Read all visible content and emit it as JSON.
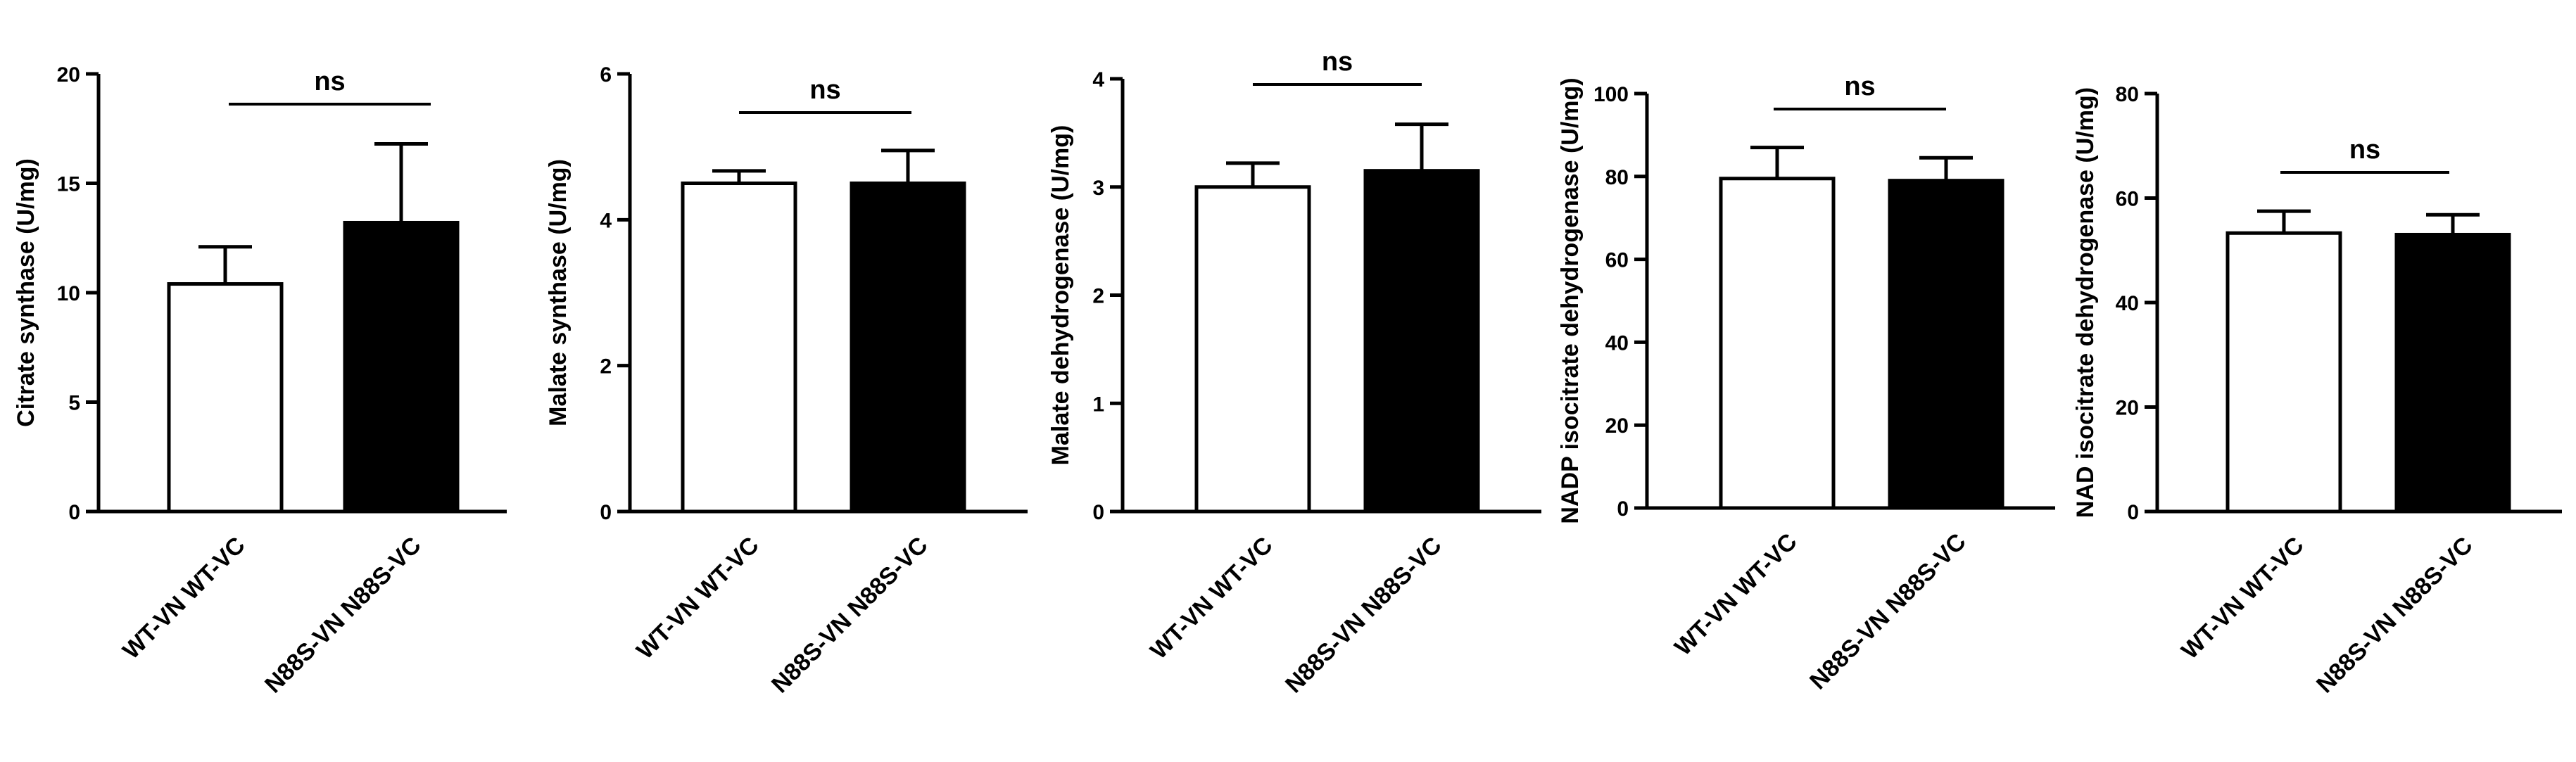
{
  "chart_data": [
    {
      "type": "bar",
      "categories": [
        "WT-VN WT-VC",
        "N88S-VN N88S-VC"
      ],
      "values": [
        10.4,
        13.2
      ],
      "errors": [
        1.7,
        3.6
      ],
      "ylabel": "Citrate synthase (U/mg)",
      "ylim": [
        0,
        20
      ],
      "yticks": [
        0,
        5,
        10,
        15,
        20
      ],
      "significance": "ns",
      "bar_colors": [
        "#ffffff",
        "#000000"
      ],
      "grid": false
    },
    {
      "type": "bar",
      "categories": [
        "WT-VN WT-VC",
        "N88S-VN N88S-VC"
      ],
      "values": [
        4.5,
        4.5
      ],
      "errors": [
        0.17,
        0.45
      ],
      "ylabel": "Malate synthase (U/mg)",
      "ylim": [
        0,
        6
      ],
      "yticks": [
        0,
        2,
        4,
        6
      ],
      "significance": "ns",
      "bar_colors": [
        "#ffffff",
        "#000000"
      ],
      "grid": false
    },
    {
      "type": "bar",
      "categories": [
        "WT-VN WT-VC",
        "N88S-VN N88S-VC"
      ],
      "values": [
        3.0,
        3.15
      ],
      "errors": [
        0.22,
        0.43
      ],
      "ylabel": "Malate dehydrogenase (U/mg)",
      "ylim": [
        0,
        4
      ],
      "yticks": [
        0,
        1,
        2,
        3,
        4
      ],
      "significance": "ns",
      "bar_colors": [
        "#ffffff",
        "#000000"
      ],
      "grid": false
    },
    {
      "type": "bar",
      "categories": [
        "WT-VN WT-VC",
        "N88S-VN N88S-VC"
      ],
      "values": [
        79.5,
        79.0
      ],
      "errors": [
        7.5,
        5.5
      ],
      "ylabel": "NADP isocitrate dehydrogenase (U/mg)",
      "ylim": [
        0,
        100
      ],
      "yticks": [
        0,
        20,
        40,
        60,
        80,
        100
      ],
      "significance": "ns",
      "bar_colors": [
        "#ffffff",
        "#000000"
      ],
      "grid": false
    },
    {
      "type": "bar",
      "categories": [
        "WT-VN WT-VC",
        "N88S-VN N88S-VC"
      ],
      "values": [
        53.3,
        53.0
      ],
      "errors": [
        4.2,
        3.8
      ],
      "ylabel": "NAD isocitrate dehydrogenase (U/mg)",
      "ylim": [
        0,
        80
      ],
      "yticks": [
        0,
        20,
        40,
        60,
        80
      ],
      "significance": "ns",
      "bar_colors": [
        "#ffffff",
        "#000000"
      ],
      "grid": false
    }
  ]
}
